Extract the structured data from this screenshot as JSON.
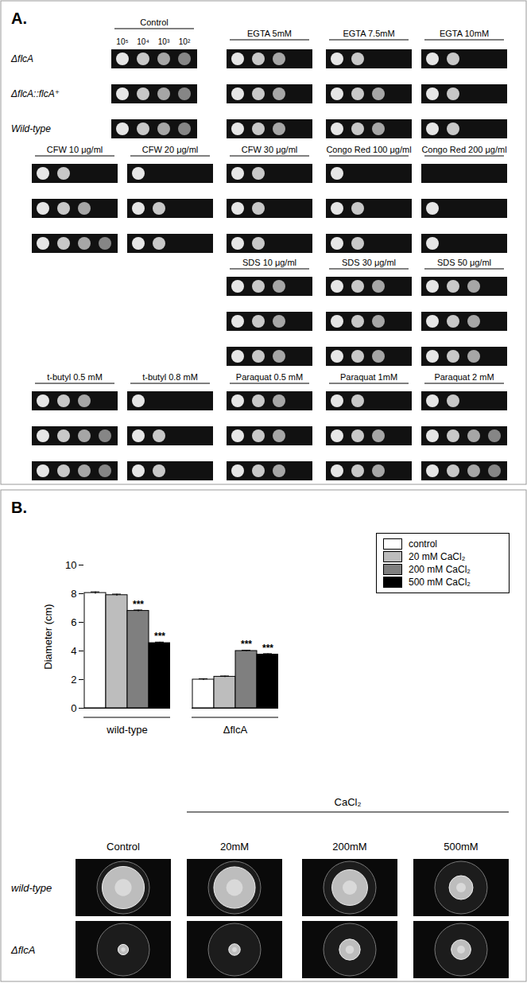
{
  "panel_A": {
    "label": "A.",
    "strains": [
      "ΔflcA",
      "ΔflcA::flcA⁺",
      "Wild-type"
    ],
    "dilutions": [
      "10⁵",
      "10⁴",
      "10³",
      "10²"
    ],
    "rows": [
      [
        {
          "title": "Control",
          "spots": [
            4,
            4,
            4
          ]
        },
        {
          "title": "EGTA 5mM",
          "spots": [
            3,
            3,
            3
          ]
        },
        {
          "title": "EGTA 7.5mM",
          "spots": [
            2,
            3,
            3
          ]
        },
        {
          "title": "EGTA 10mM",
          "spots": [
            2,
            2,
            2
          ]
        }
      ],
      [
        {
          "title": "CFW 10 μg/ml",
          "spots": [
            2,
            3,
            4
          ]
        },
        {
          "title": "CFW 20 μg/ml",
          "spots": [
            1,
            2,
            2
          ]
        },
        {
          "title": "CFW 30 μg/ml",
          "spots": [
            2,
            2,
            2
          ]
        },
        {
          "title": "Congo Red 100 μg/ml",
          "spots": [
            1,
            2,
            2
          ]
        },
        {
          "title": "Congo Red 200 μg/ml",
          "spots": [
            0,
            1,
            1
          ]
        }
      ],
      [
        null,
        null,
        {
          "title": "SDS 10 μg/ml",
          "spots": [
            3,
            3,
            3
          ]
        },
        {
          "title": "SDS 30 μg/ml",
          "spots": [
            3,
            3,
            3
          ]
        },
        {
          "title": "SDS 50 μg/ml",
          "spots": [
            3,
            3,
            3
          ]
        }
      ],
      [
        {
          "title": "t-butyl 0.5 mM",
          "spots": [
            3,
            4,
            4
          ]
        },
        {
          "title": "t-butyl 0.8 mM",
          "spots": [
            1,
            2,
            2
          ]
        },
        {
          "title": "Paraquat 0.5 mM",
          "spots": [
            3,
            3,
            3
          ]
        },
        {
          "title": "Paraquat 1mM",
          "spots": [
            2,
            3,
            3
          ]
        },
        {
          "title": "Paraquat 2 mM",
          "spots": [
            2,
            4,
            4
          ]
        }
      ]
    ]
  },
  "panel_B": {
    "label": "B.",
    "photos": {
      "header": "CaCl₂",
      "columns": [
        "Control",
        "20mM",
        "200mM",
        "500mM"
      ],
      "rows": [
        "wild-type",
        "ΔflcA"
      ]
    }
  },
  "chart_data": {
    "type": "bar",
    "ylabel": "Diameter (cm)",
    "categories": [
      "wild-type",
      "ΔflcA"
    ],
    "ylim": [
      0,
      10
    ],
    "yticks": [
      0,
      2,
      4,
      6,
      8,
      10
    ],
    "grid": false,
    "legend": "top-right",
    "series": [
      {
        "name": "control",
        "color": "#ffffff",
        "values": [
          8.05,
          2.0
        ],
        "errors": [
          0.08,
          0.06
        ],
        "significance": [
          null,
          null
        ]
      },
      {
        "name": "20 mM  CaCl₂",
        "color": "#bdbdbd",
        "values": [
          7.9,
          2.2
        ],
        "errors": [
          0.07,
          0.05
        ],
        "significance": [
          null,
          null
        ]
      },
      {
        "name": "200 mM  CaCl₂",
        "color": "#7f7f7f",
        "values": [
          6.8,
          4.0
        ],
        "errors": [
          0.06,
          0.05
        ],
        "significance": [
          "***",
          "***"
        ]
      },
      {
        "name": "500 mM  CaCl₂",
        "color": "#000000",
        "values": [
          4.55,
          3.75
        ],
        "errors": [
          0.07,
          0.06
        ],
        "significance": [
          "***",
          "***"
        ]
      }
    ]
  }
}
